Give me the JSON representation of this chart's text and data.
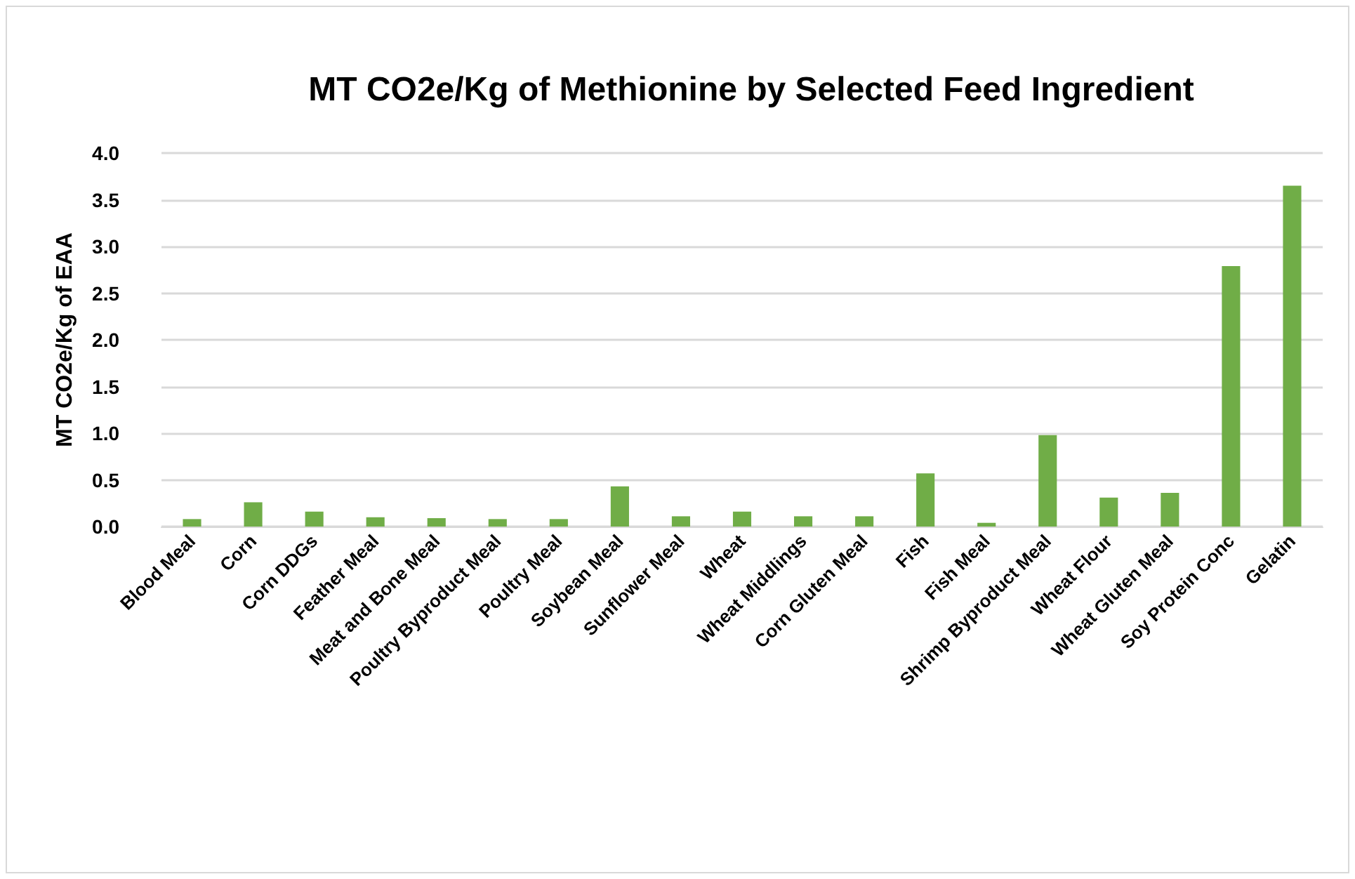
{
  "chart_data": {
    "type": "bar",
    "title": "MT CO2e/Kg of Methionine by Selected Feed Ingredient",
    "ylabel": "MT CO2e/Kg of EAA",
    "categories": [
      "Blood Meal",
      "Corn",
      "Corn DDGs",
      "Feather Meal",
      "Meat and Bone Meal",
      "Poultry Byproduct Meal",
      "Poultry Meal",
      "Soybean Meal",
      "Sunflower Meal",
      "Wheat",
      "Wheat Middlings",
      "Corn Gluten Meal",
      "Fish",
      "Fish Meal",
      "Shrimp Byproduct Meal",
      "Wheat Flour",
      "Wheat Gluten Meal",
      "Soy Protein Conc",
      "Gelatin"
    ],
    "values": [
      0.08,
      0.26,
      0.16,
      0.1,
      0.09,
      0.08,
      0.08,
      0.43,
      0.11,
      0.16,
      0.11,
      0.11,
      0.57,
      0.04,
      0.98,
      0.31,
      0.36,
      2.79,
      3.65
    ],
    "color": "#70ad47",
    "ylim": [
      0,
      4
    ],
    "yticks": [
      {
        "value": 0,
        "label": "0.0"
      },
      {
        "value": 0.5,
        "label": "0.5"
      },
      {
        "value": 1,
        "label": "1.0"
      },
      {
        "value": 1.5,
        "label": "1.5"
      },
      {
        "value": 2,
        "label": "2.0"
      },
      {
        "value": 2.5,
        "label": "2.5"
      },
      {
        "value": 3,
        "label": "3.0"
      },
      {
        "value": 3.5,
        "label": "3.5"
      },
      {
        "value": 4,
        "label": "4.0"
      }
    ],
    "grid": "y"
  }
}
